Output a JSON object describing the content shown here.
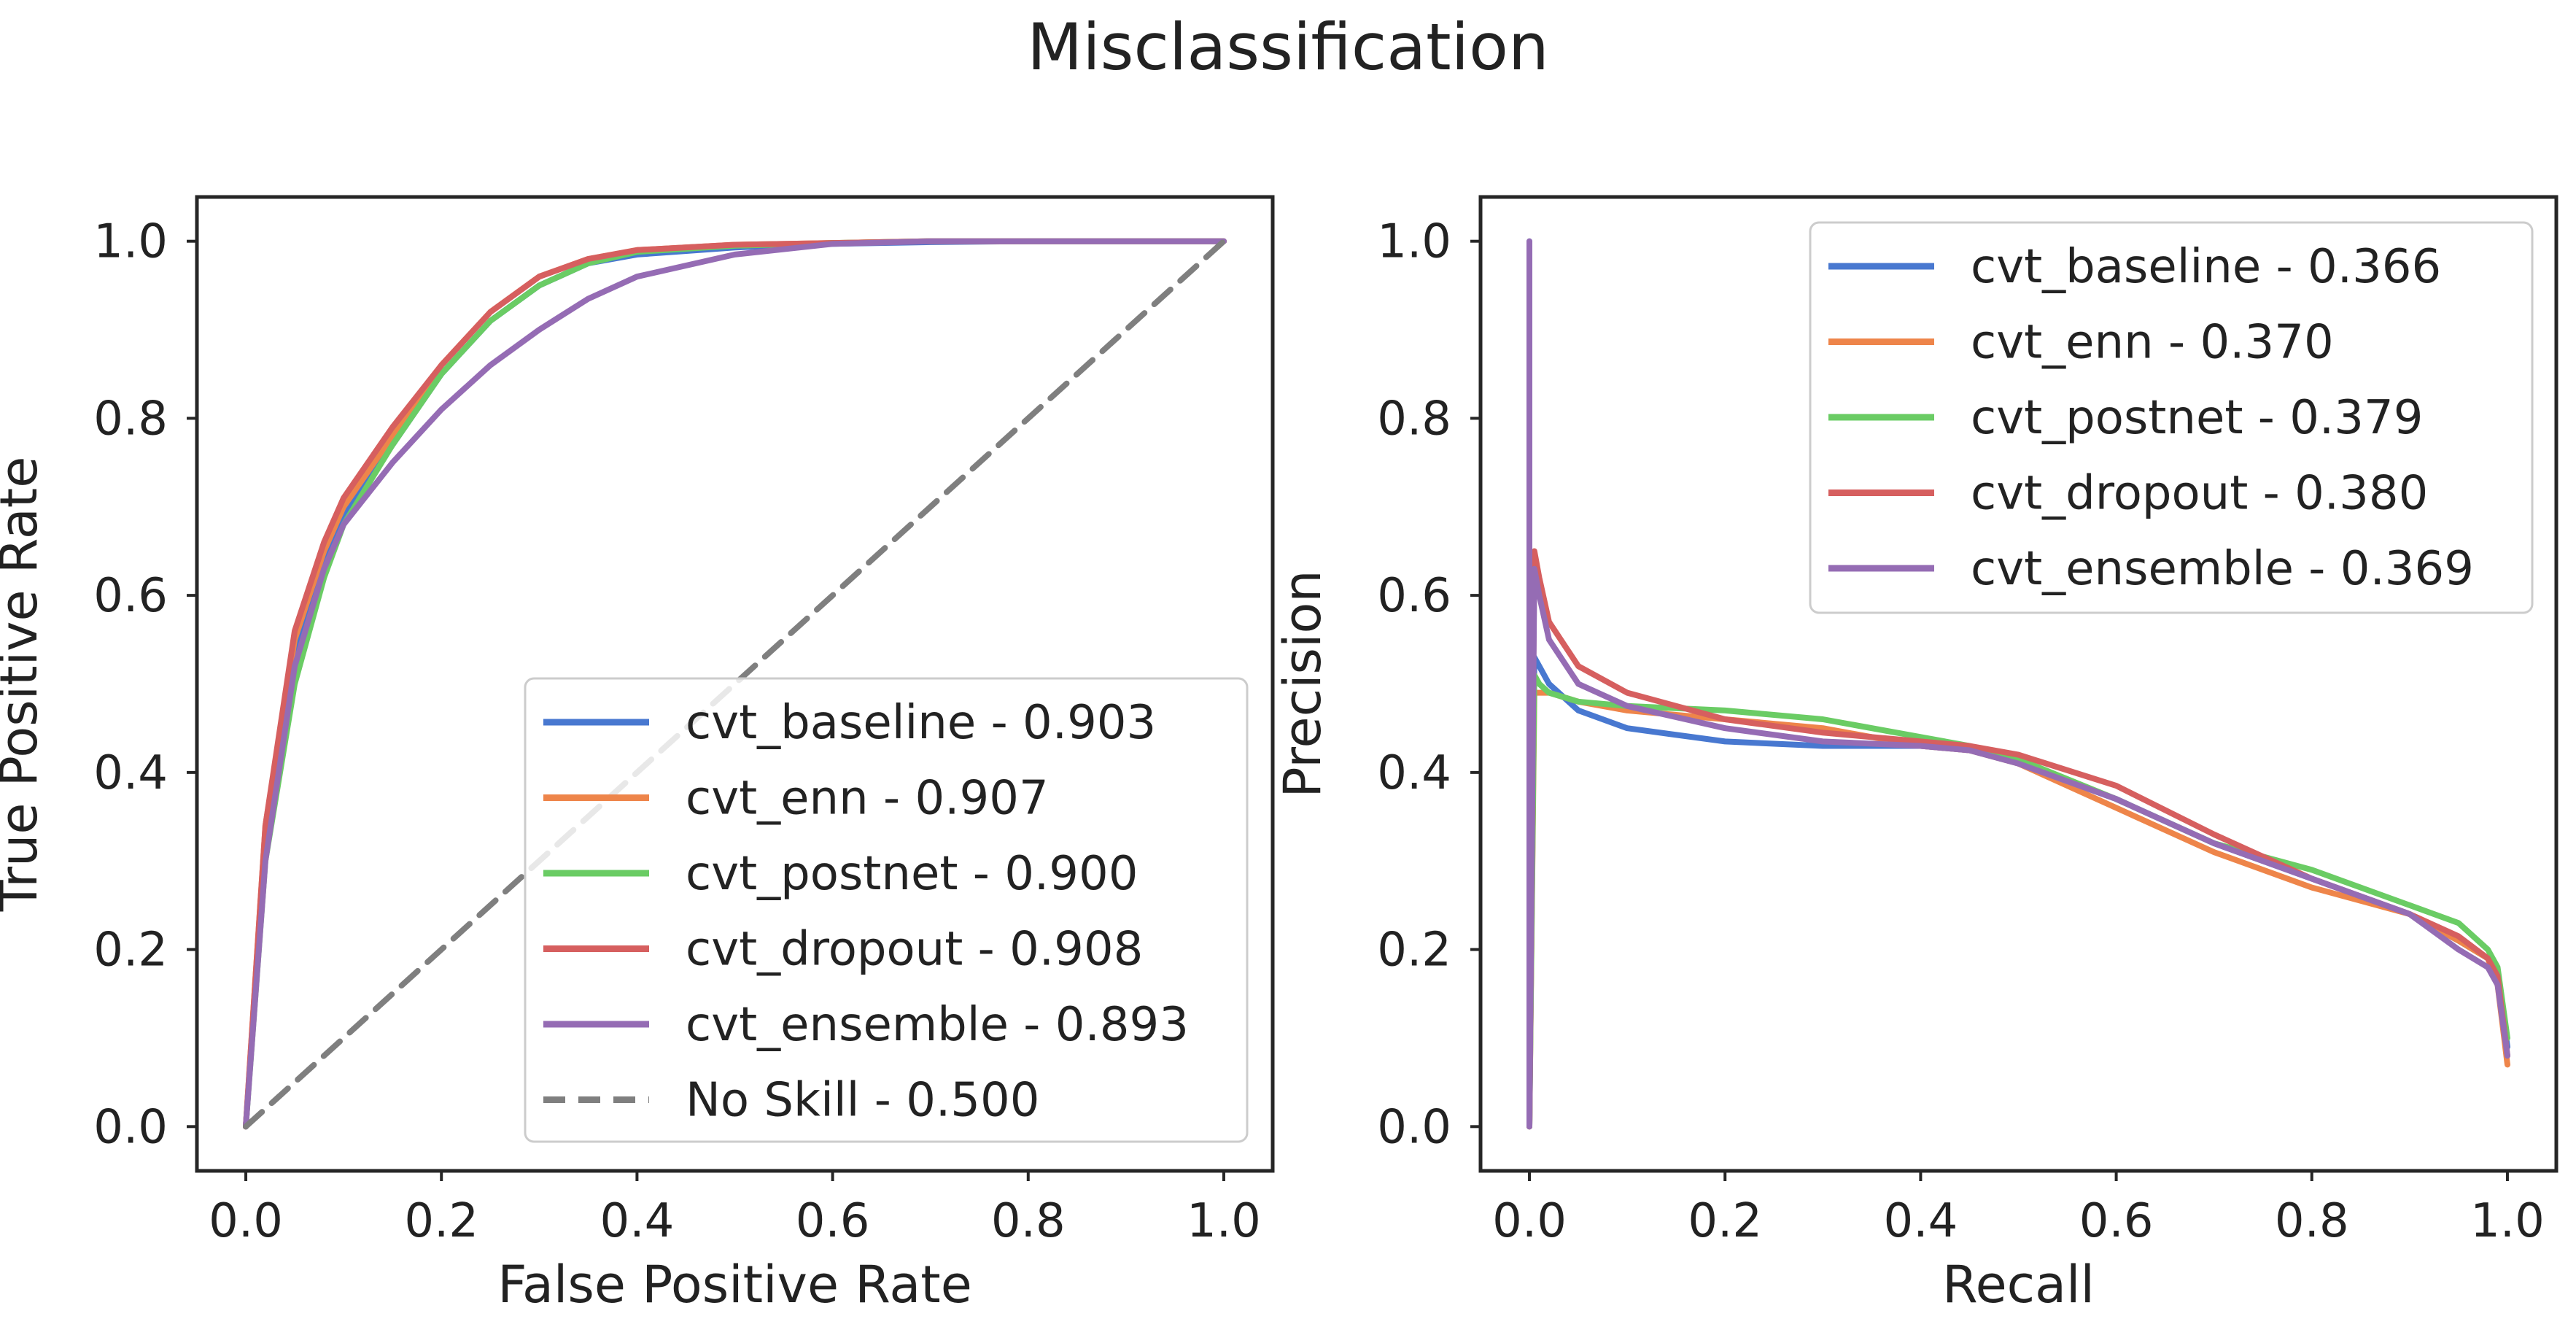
{
  "title": "Misclassification",
  "chart_data": [
    {
      "type": "line",
      "xlabel": "False Positive Rate",
      "ylabel": "True Positive Rate",
      "xlim": [
        -0.05,
        1.05
      ],
      "ylim": [
        -0.05,
        1.05
      ],
      "xticks": [
        "0.0",
        "0.2",
        "0.4",
        "0.6",
        "0.8",
        "1.0"
      ],
      "yticks": [
        "0.0",
        "0.2",
        "0.4",
        "0.6",
        "0.8",
        "1.0"
      ],
      "grid": false,
      "legend_position": "lower-right",
      "series": [
        {
          "name": "cvt_baseline - 0.903",
          "color": "#4878d0",
          "x": [
            0,
            0.02,
            0.05,
            0.08,
            0.1,
            0.15,
            0.2,
            0.25,
            0.3,
            0.35,
            0.4,
            0.5,
            0.6,
            0.7,
            0.8,
            1.0
          ],
          "y": [
            0,
            0.32,
            0.54,
            0.64,
            0.69,
            0.77,
            0.85,
            0.91,
            0.95,
            0.975,
            0.985,
            0.993,
            0.997,
            0.999,
            1.0,
            1.0
          ]
        },
        {
          "name": "cvt_enn - 0.907",
          "color": "#ee854a",
          "x": [
            0,
            0.02,
            0.05,
            0.08,
            0.1,
            0.15,
            0.2,
            0.25,
            0.3,
            0.35,
            0.4,
            0.5,
            0.6,
            0.7,
            0.8,
            1.0
          ],
          "y": [
            0,
            0.34,
            0.55,
            0.65,
            0.7,
            0.78,
            0.86,
            0.92,
            0.96,
            0.98,
            0.99,
            0.996,
            0.998,
            1.0,
            1.0,
            1.0
          ]
        },
        {
          "name": "cvt_postnet - 0.900",
          "color": "#6acc64",
          "x": [
            0,
            0.02,
            0.05,
            0.08,
            0.1,
            0.15,
            0.2,
            0.25,
            0.3,
            0.35,
            0.4,
            0.5,
            0.6,
            0.7,
            0.8,
            1.0
          ],
          "y": [
            0,
            0.3,
            0.5,
            0.62,
            0.68,
            0.77,
            0.85,
            0.91,
            0.95,
            0.975,
            0.988,
            0.995,
            0.998,
            1.0,
            1.0,
            1.0
          ]
        },
        {
          "name": "cvt_dropout - 0.908",
          "color": "#d65f5f",
          "x": [
            0,
            0.02,
            0.05,
            0.08,
            0.1,
            0.15,
            0.2,
            0.25,
            0.3,
            0.35,
            0.4,
            0.5,
            0.6,
            0.7,
            0.8,
            1.0
          ],
          "y": [
            0,
            0.34,
            0.56,
            0.66,
            0.71,
            0.79,
            0.86,
            0.92,
            0.96,
            0.98,
            0.99,
            0.996,
            0.998,
            1.0,
            1.0,
            1.0
          ]
        },
        {
          "name": "cvt_ensemble - 0.893",
          "color": "#956cb4",
          "x": [
            0,
            0.02,
            0.05,
            0.08,
            0.1,
            0.15,
            0.2,
            0.25,
            0.3,
            0.35,
            0.4,
            0.5,
            0.6,
            0.7,
            0.8,
            1.0
          ],
          "y": [
            0,
            0.3,
            0.52,
            0.63,
            0.68,
            0.75,
            0.81,
            0.86,
            0.9,
            0.935,
            0.96,
            0.985,
            0.997,
            1.0,
            1.0,
            1.0
          ]
        },
        {
          "name": "No Skill - 0.500",
          "color": "#7f7f7f",
          "dashed": true,
          "x": [
            0,
            1.0
          ],
          "y": [
            0,
            1.0
          ]
        }
      ]
    },
    {
      "type": "line",
      "xlabel": "Recall",
      "ylabel": "Precision",
      "xlim": [
        -0.05,
        1.05
      ],
      "ylim": [
        -0.05,
        1.05
      ],
      "xticks": [
        "0.0",
        "0.2",
        "0.4",
        "0.6",
        "0.8",
        "1.0"
      ],
      "yticks": [
        "0.0",
        "0.2",
        "0.4",
        "0.6",
        "0.8",
        "1.0"
      ],
      "grid": false,
      "legend_position": "upper-right",
      "series": [
        {
          "name": "cvt_baseline - 0.366",
          "color": "#4878d0",
          "x": [
            0.0,
            0.0,
            0.005,
            0.01,
            0.02,
            0.05,
            0.1,
            0.2,
            0.3,
            0.4,
            0.45,
            0.5,
            0.6,
            0.7,
            0.8,
            0.9,
            0.95,
            0.98,
            0.99,
            1.0
          ],
          "y": [
            1.0,
            0.0,
            0.53,
            0.52,
            0.5,
            0.47,
            0.45,
            0.435,
            0.43,
            0.43,
            0.425,
            0.41,
            0.37,
            0.32,
            0.28,
            0.24,
            0.21,
            0.19,
            0.17,
            0.09
          ]
        },
        {
          "name": "cvt_enn - 0.370",
          "color": "#ee854a",
          "x": [
            0.0,
            0.005,
            0.01,
            0.02,
            0.05,
            0.1,
            0.2,
            0.3,
            0.4,
            0.45,
            0.5,
            0.6,
            0.7,
            0.8,
            0.9,
            0.95,
            0.98,
            0.99,
            1.0
          ],
          "y": [
            0.0,
            0.49,
            0.49,
            0.49,
            0.48,
            0.47,
            0.46,
            0.45,
            0.43,
            0.425,
            0.41,
            0.36,
            0.31,
            0.27,
            0.24,
            0.21,
            0.19,
            0.16,
            0.07
          ]
        },
        {
          "name": "cvt_postnet - 0.379",
          "color": "#6acc64",
          "x": [
            0.0,
            0.005,
            0.01,
            0.02,
            0.05,
            0.1,
            0.2,
            0.3,
            0.4,
            0.45,
            0.5,
            0.6,
            0.7,
            0.8,
            0.9,
            0.95,
            0.98,
            0.99,
            1.0
          ],
          "y": [
            0.0,
            0.51,
            0.5,
            0.49,
            0.48,
            0.475,
            0.47,
            0.46,
            0.44,
            0.43,
            0.415,
            0.37,
            0.32,
            0.29,
            0.25,
            0.23,
            0.2,
            0.18,
            0.1
          ]
        },
        {
          "name": "cvt_dropout - 0.380",
          "color": "#d65f5f",
          "x": [
            0.0,
            0.005,
            0.01,
            0.02,
            0.05,
            0.1,
            0.2,
            0.3,
            0.4,
            0.45,
            0.5,
            0.6,
            0.7,
            0.8,
            0.9,
            0.95,
            0.98,
            0.99,
            1.0
          ],
          "y": [
            0.0,
            0.65,
            0.62,
            0.57,
            0.52,
            0.49,
            0.46,
            0.445,
            0.435,
            0.43,
            0.42,
            0.385,
            0.33,
            0.28,
            0.24,
            0.215,
            0.19,
            0.17,
            0.08
          ]
        },
        {
          "name": "cvt_ensemble - 0.369",
          "color": "#956cb4",
          "x": [
            0.0,
            0.0,
            0.005,
            0.01,
            0.02,
            0.05,
            0.1,
            0.2,
            0.3,
            0.4,
            0.45,
            0.5,
            0.6,
            0.7,
            0.8,
            0.9,
            0.95,
            0.98,
            0.99,
            1.0
          ],
          "y": [
            1.0,
            0.0,
            0.63,
            0.6,
            0.55,
            0.5,
            0.475,
            0.45,
            0.435,
            0.43,
            0.425,
            0.41,
            0.37,
            0.32,
            0.28,
            0.24,
            0.2,
            0.18,
            0.16,
            0.08
          ]
        }
      ]
    }
  ]
}
